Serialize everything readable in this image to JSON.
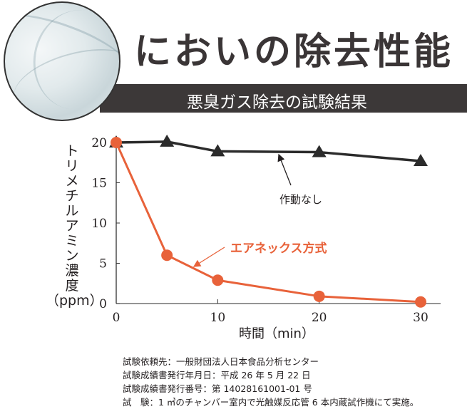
{
  "header": {
    "title": "においの除去性能",
    "banner": "悪臭ガス除去の試験結果"
  },
  "chart_data": {
    "type": "line",
    "title": "悪臭ガス除去の試験結果",
    "xlabel": "時間（min）",
    "ylabel": "トリメチルアミン濃度（ppm）",
    "ylabel_vertical": "トリメチルアミン濃度",
    "ylabel_unit": "（ppm）",
    "xlim": [
      0,
      30
    ],
    "ylim": [
      0,
      20
    ],
    "xticks": [
      0,
      10,
      20,
      30
    ],
    "yticks": [
      0,
      5,
      10,
      15,
      20
    ],
    "grid": false,
    "series": [
      {
        "name": "作動なし",
        "marker": "triangle",
        "color": "#2b2b2b",
        "x": [
          0,
          5,
          10,
          20,
          30
        ],
        "values": [
          20,
          20.1,
          18.9,
          18.8,
          17.7
        ]
      },
      {
        "name": "エアネックス方式",
        "marker": "circle",
        "color": "#e8623a",
        "x": [
          0,
          5,
          10,
          20,
          30
        ],
        "values": [
          20,
          6.0,
          2.9,
          0.9,
          0.2
        ]
      }
    ],
    "annotations": [
      {
        "text": "作動なし",
        "series": 0
      },
      {
        "text": "エアネックス方式",
        "series": 1
      }
    ]
  },
  "notes": [
    "試験依頼先：一般財団法人日本食品分析センター",
    "試験成績書発行年月日：平成 26 年 5 月 22 日",
    "試験成績書発行番号：第 14028161001-01 号",
    "試　験：1 ㎥のチャンバー室内で光触媒反応管 6 本内蔵試作機にて実施。"
  ]
}
